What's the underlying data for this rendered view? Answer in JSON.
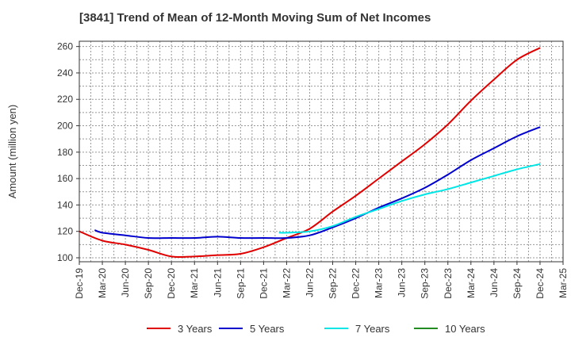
{
  "chart_data": {
    "type": "line",
    "title": "[3841]  Trend of Mean of 12-Month Moving Sum of Net Incomes",
    "xlabel": "",
    "ylabel": "Amount (million yen)",
    "ylim": [
      97,
      264
    ],
    "yticks": [
      100,
      120,
      140,
      160,
      180,
      200,
      220,
      240,
      260
    ],
    "xticks": [
      "Dec-19",
      "Mar-20",
      "Jun-20",
      "Sep-20",
      "Dec-20",
      "Mar-21",
      "Jun-21",
      "Sep-21",
      "Dec-21",
      "Mar-22",
      "Jun-22",
      "Sep-22",
      "Dec-22",
      "Mar-23",
      "Jun-23",
      "Sep-23",
      "Dec-23",
      "Mar-24",
      "Jun-24",
      "Sep-24",
      "Dec-24",
      "Mar-25"
    ],
    "grid": true,
    "legend_position": "bottom",
    "series": [
      {
        "name": "3 Years",
        "color": "#e00000",
        "x": [
          "Dec-19",
          "Mar-20",
          "Jun-20",
          "Sep-20",
          "Dec-20",
          "Mar-21",
          "Jun-21",
          "Sep-21",
          "Dec-21",
          "Mar-22",
          "Jun-22",
          "Sep-22",
          "Dec-22",
          "Mar-23",
          "Jun-23",
          "Sep-23",
          "Dec-23",
          "Mar-24",
          "Jun-24",
          "Sep-24",
          "Dec-24"
        ],
        "values": [
          120,
          113,
          110,
          106,
          101,
          101,
          102,
          103,
          108,
          115,
          122,
          135,
          147,
          160,
          173,
          186,
          201,
          219,
          235,
          250,
          259
        ]
      },
      {
        "name": "5 Years",
        "color": "#0000cc",
        "x": [
          "Feb-20",
          "Mar-20",
          "Jun-20",
          "Sep-20",
          "Dec-20",
          "Mar-21",
          "Jun-21",
          "Sep-21",
          "Dec-21",
          "Mar-22",
          "Jun-22",
          "Sep-22",
          "Dec-22",
          "Mar-23",
          "Jun-23",
          "Sep-23",
          "Dec-23",
          "Mar-24",
          "Jun-24",
          "Sep-24",
          "Dec-24"
        ],
        "values": [
          121,
          119,
          117,
          115,
          115,
          115,
          116,
          115,
          115,
          115,
          117,
          123,
          130,
          138,
          145,
          153,
          163,
          174,
          183,
          192,
          199
        ]
      },
      {
        "name": "7 Years",
        "color": "#00e5e5",
        "x": [
          "Feb-22",
          "Mar-22",
          "Jun-22",
          "Sep-22",
          "Dec-22",
          "Mar-23",
          "Jun-23",
          "Sep-23",
          "Dec-23",
          "Mar-24",
          "Jun-24",
          "Sep-24",
          "Dec-24"
        ],
        "values": [
          119,
          119,
          120,
          124,
          131,
          137,
          143,
          148,
          152,
          157,
          162,
          167,
          171
        ]
      },
      {
        "name": "10 Years",
        "color": "#228b22",
        "x": [],
        "values": []
      }
    ]
  }
}
